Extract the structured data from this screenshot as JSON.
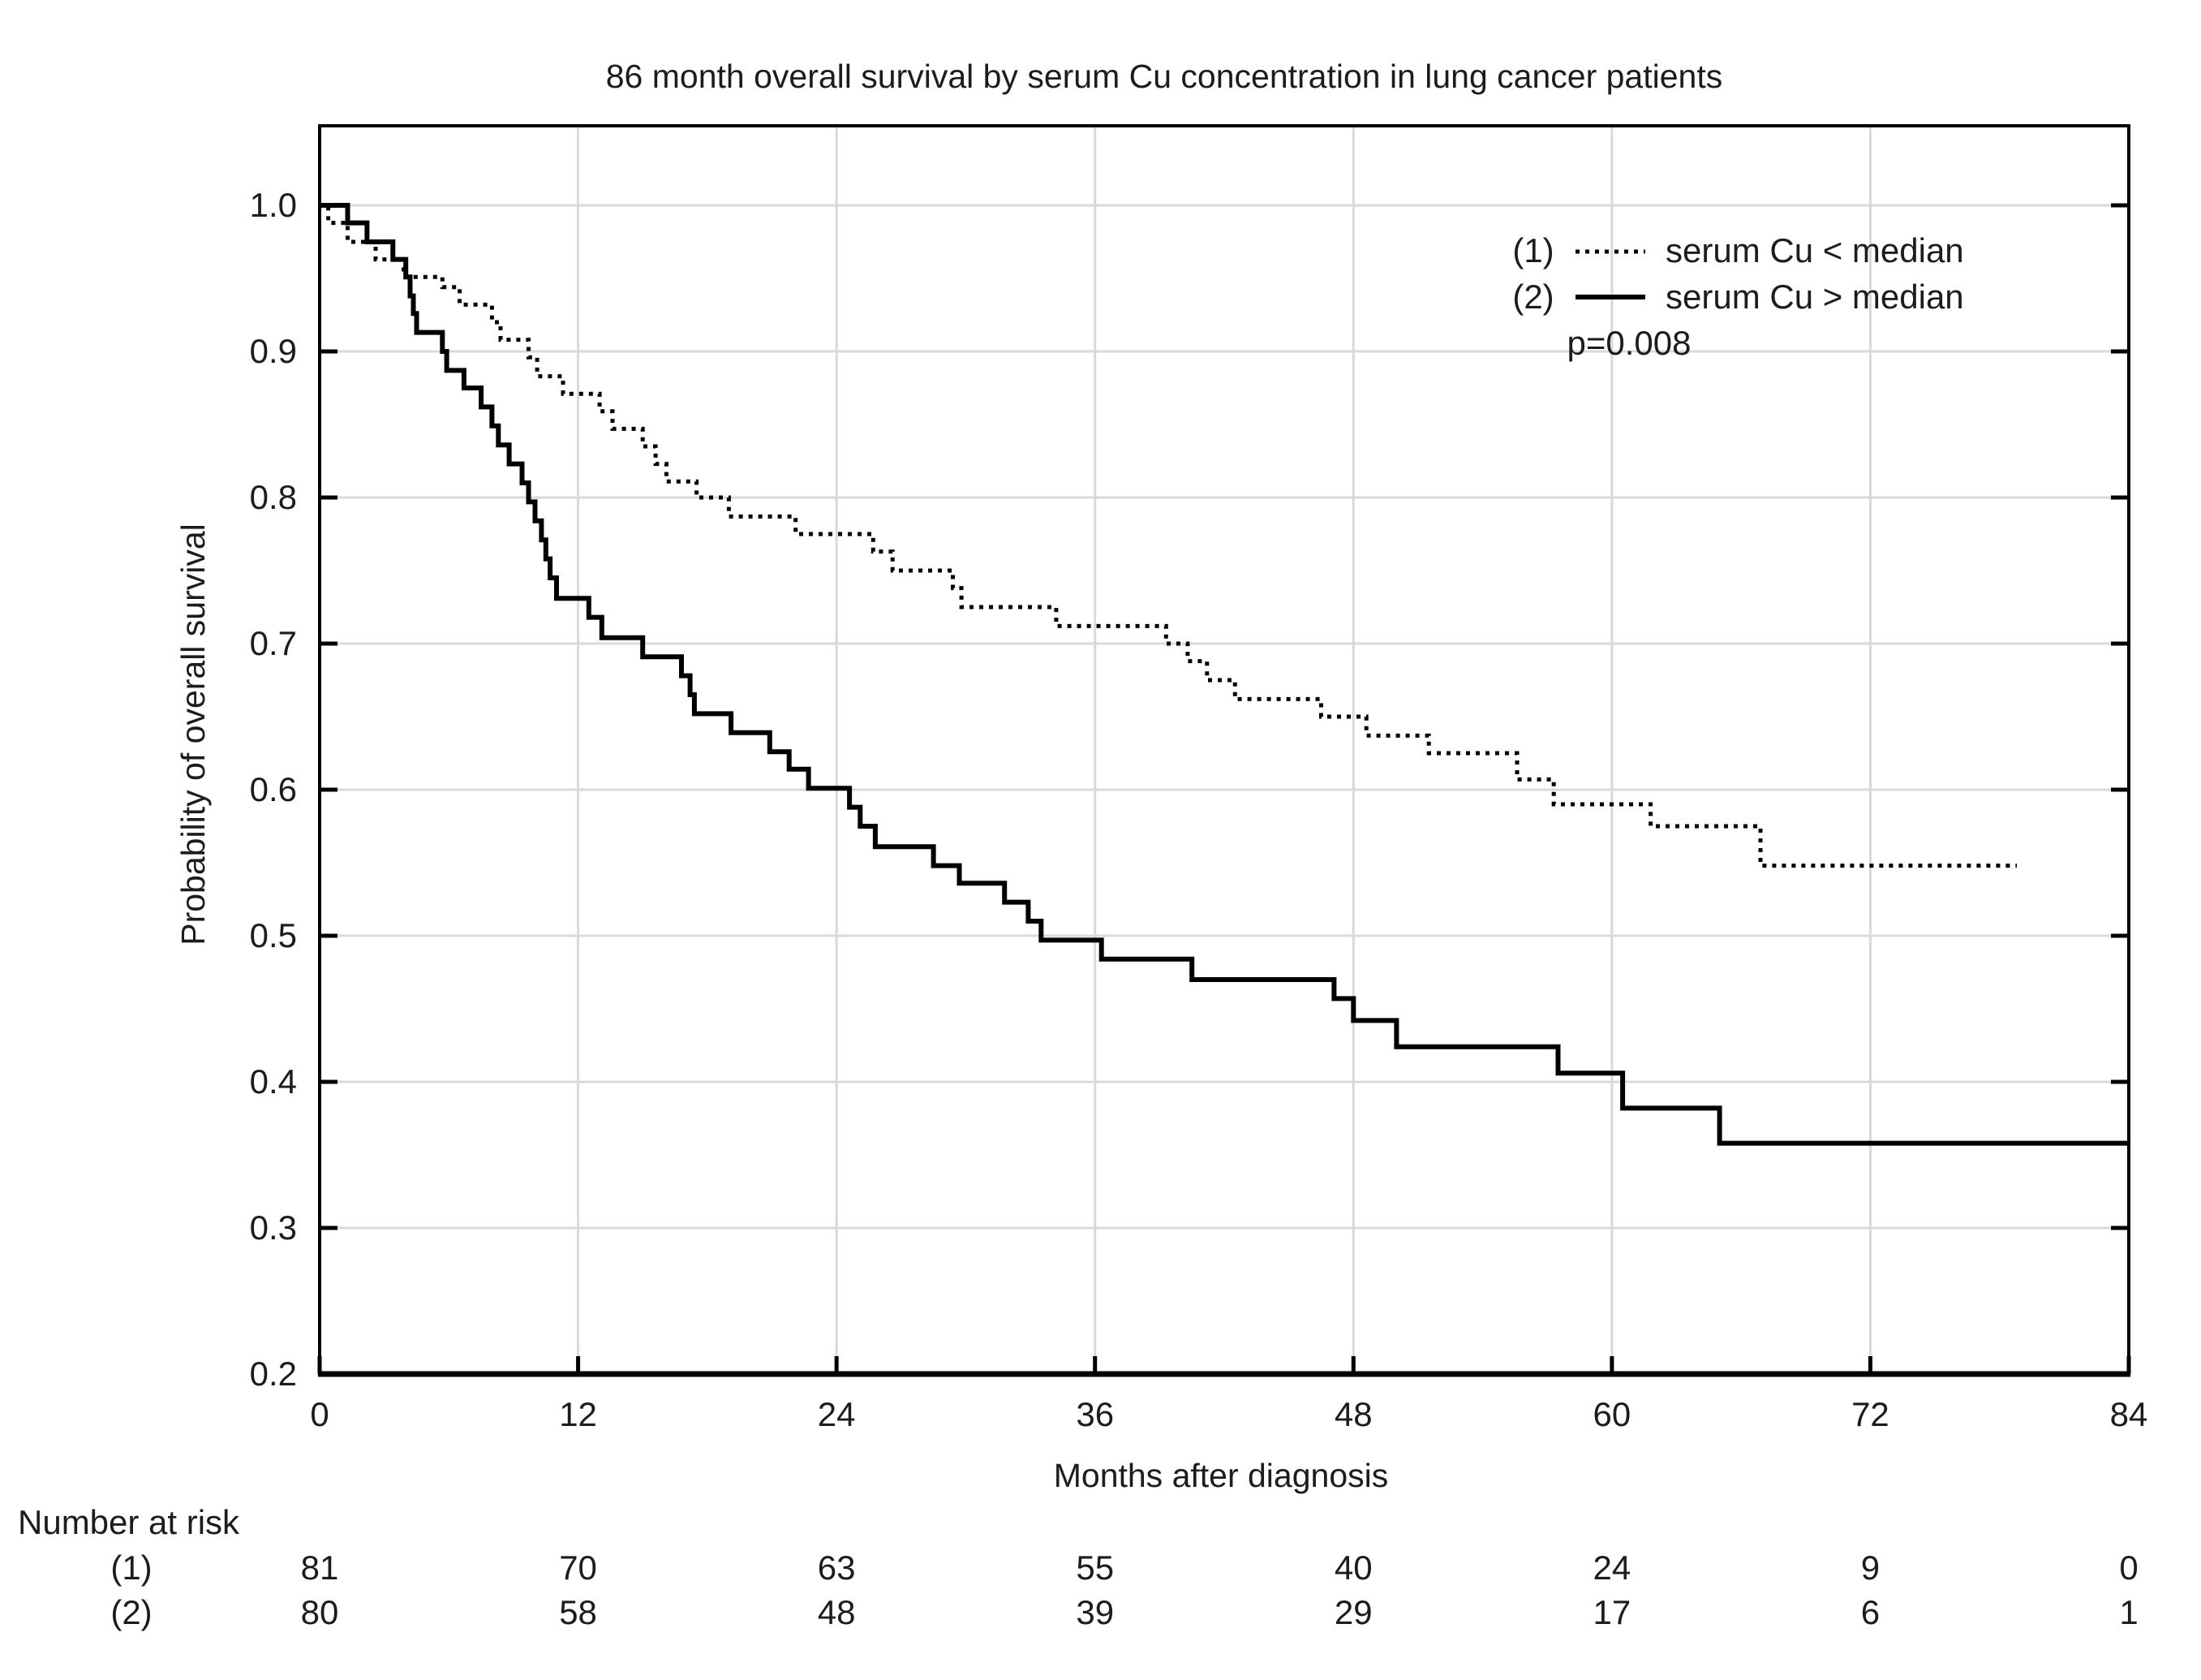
{
  "title": "86 month overall survival by serum Cu concentration in lung cancer patients",
  "y_axis": {
    "label": "Probability of overall survival",
    "ticks": [
      "1.0",
      "0.9",
      "0.8",
      "0.7",
      "0.6",
      "0.5",
      "0.4",
      "0.3",
      "0.2"
    ]
  },
  "x_axis": {
    "label": "Months after diagnosis",
    "ticks": [
      "0",
      "12",
      "24",
      "36",
      "48",
      "60",
      "72",
      "84"
    ]
  },
  "legend": {
    "items": [
      {
        "id": "(1)",
        "line": "dotted",
        "label": "serum Cu < median"
      },
      {
        "id": "(2)",
        "line": "solid",
        "label": "serum Cu > median"
      }
    ],
    "p_value": "p=0.008"
  },
  "risk_table": {
    "title": "Number at risk",
    "months": [
      0,
      12,
      24,
      36,
      48,
      60,
      72,
      84
    ],
    "rows": [
      {
        "label": "(1)",
        "counts": [
          "81",
          "70",
          "63",
          "55",
          "40",
          "24",
          "9",
          "0"
        ]
      },
      {
        "label": "(2)",
        "counts": [
          "80",
          "58",
          "48",
          "39",
          "29",
          "17",
          "6",
          "1"
        ]
      }
    ]
  },
  "chart_data": {
    "type": "line",
    "subtype": "kaplan-meier-step",
    "title": "86 month overall survival by serum Cu concentration in lung cancer patients",
    "xlabel": "Months after diagnosis",
    "ylabel": "Probability of overall survival",
    "xlim": [
      0,
      84
    ],
    "ylim": [
      0.2,
      1.055
    ],
    "x_ticks": [
      0,
      12,
      24,
      36,
      48,
      60,
      72,
      84
    ],
    "y_ticks": [
      0.2,
      0.3,
      0.4,
      0.5,
      0.6,
      0.7,
      0.8,
      0.9,
      1.0
    ],
    "grid": true,
    "legend_position": "top-right-inside",
    "p_value": "p=0.008",
    "series": [
      {
        "id": "(1)",
        "name": "serum Cu < median",
        "style": "dotted",
        "end_month": 78.8,
        "at_risk": [
          81,
          70,
          63,
          55,
          40,
          24,
          9,
          0
        ],
        "steps": [
          [
            0,
            1.0
          ],
          [
            0.4,
            0.988
          ],
          [
            1.3,
            0.975
          ],
          [
            2.6,
            0.963
          ],
          [
            3.9,
            0.951
          ],
          [
            5.7,
            0.944
          ],
          [
            6.5,
            0.932
          ],
          [
            8.0,
            0.92
          ],
          [
            8.4,
            0.908
          ],
          [
            9.7,
            0.896
          ],
          [
            10.1,
            0.883
          ],
          [
            11.3,
            0.871
          ],
          [
            13.0,
            0.859
          ],
          [
            13.6,
            0.847
          ],
          [
            15.0,
            0.835
          ],
          [
            15.6,
            0.823
          ],
          [
            16.1,
            0.811
          ],
          [
            17.5,
            0.8
          ],
          [
            19.0,
            0.787
          ],
          [
            22.1,
            0.775
          ],
          [
            25.7,
            0.763
          ],
          [
            26.6,
            0.75
          ],
          [
            29.4,
            0.738
          ],
          [
            29.8,
            0.725
          ],
          [
            34.2,
            0.712
          ],
          [
            39.3,
            0.7
          ],
          [
            40.3,
            0.688
          ],
          [
            41.2,
            0.675
          ],
          [
            42.5,
            0.662
          ],
          [
            46.5,
            0.65
          ],
          [
            48.6,
            0.637
          ],
          [
            51.5,
            0.625
          ],
          [
            55.6,
            0.607
          ],
          [
            57.3,
            0.59
          ],
          [
            61.8,
            0.575
          ],
          [
            66.9,
            0.548
          ]
        ]
      },
      {
        "id": "(2)",
        "name": "serum Cu > median",
        "style": "solid",
        "end_month": 84,
        "at_risk": [
          80,
          58,
          48,
          39,
          29,
          17,
          6,
          1
        ],
        "steps": [
          [
            0,
            1.0
          ],
          [
            1.3,
            0.988
          ],
          [
            2.2,
            0.975
          ],
          [
            3.4,
            0.963
          ],
          [
            4.0,
            0.951
          ],
          [
            4.2,
            0.938
          ],
          [
            4.35,
            0.926
          ],
          [
            4.5,
            0.913
          ],
          [
            5.7,
            0.9
          ],
          [
            5.9,
            0.887
          ],
          [
            6.7,
            0.875
          ],
          [
            7.5,
            0.862
          ],
          [
            8.0,
            0.849
          ],
          [
            8.3,
            0.836
          ],
          [
            8.8,
            0.823
          ],
          [
            9.4,
            0.81
          ],
          [
            9.7,
            0.797
          ],
          [
            10.0,
            0.784
          ],
          [
            10.3,
            0.771
          ],
          [
            10.5,
            0.758
          ],
          [
            10.7,
            0.745
          ],
          [
            11.0,
            0.731
          ],
          [
            12.5,
            0.718
          ],
          [
            13.1,
            0.704
          ],
          [
            15.0,
            0.691
          ],
          [
            16.8,
            0.678
          ],
          [
            17.2,
            0.665
          ],
          [
            17.4,
            0.652
          ],
          [
            19.1,
            0.639
          ],
          [
            20.9,
            0.626
          ],
          [
            21.8,
            0.614
          ],
          [
            22.7,
            0.601
          ],
          [
            24.6,
            0.588
          ],
          [
            25.1,
            0.575
          ],
          [
            25.8,
            0.561
          ],
          [
            28.5,
            0.548
          ],
          [
            29.7,
            0.536
          ],
          [
            31.8,
            0.523
          ],
          [
            32.9,
            0.51
          ],
          [
            33.5,
            0.497
          ],
          [
            36.3,
            0.484
          ],
          [
            40.5,
            0.47
          ],
          [
            47.1,
            0.457
          ],
          [
            48.0,
            0.442
          ],
          [
            50.0,
            0.424
          ],
          [
            57.5,
            0.406
          ],
          [
            60.5,
            0.382
          ],
          [
            65.0,
            0.358
          ]
        ]
      }
    ]
  }
}
